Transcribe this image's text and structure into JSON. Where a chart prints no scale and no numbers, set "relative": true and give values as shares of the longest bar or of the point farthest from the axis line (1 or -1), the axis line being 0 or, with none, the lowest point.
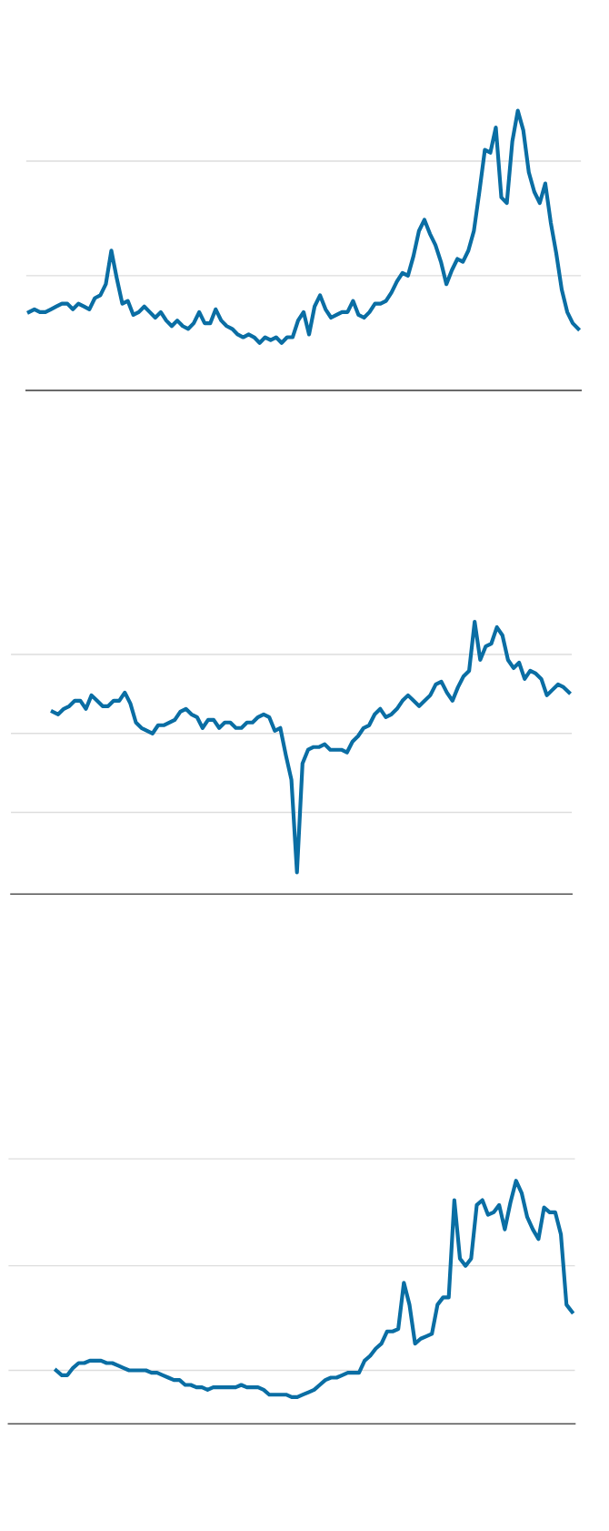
{
  "chart_data": [
    {
      "type": "line",
      "relative": true,
      "ref_lines": [
        {
          "axis": "y",
          "value": 0.41,
          "color": "#dddddd"
        },
        {
          "axis": "y",
          "value": 0.82,
          "color": "#dddddd"
        }
      ],
      "categories": [
        null,
        null,
        null,
        null,
        null,
        null,
        null,
        null,
        null,
        null,
        null,
        null,
        null,
        null,
        null,
        null,
        null,
        null,
        null,
        null,
        null,
        null,
        null,
        null,
        null,
        null,
        null,
        null,
        null,
        null,
        null,
        null,
        null,
        null,
        null,
        null,
        null,
        null,
        null,
        null,
        null,
        null,
        null,
        null,
        null,
        null,
        null,
        null,
        null,
        null,
        null,
        null,
        null,
        null,
        null,
        null,
        null,
        null,
        null,
        null,
        null,
        null,
        null,
        null,
        null,
        null,
        null,
        null,
        null,
        null,
        null,
        null,
        null,
        null,
        null,
        null,
        null,
        null,
        null,
        null,
        null,
        null,
        null,
        null,
        null,
        null,
        null,
        null,
        null,
        null,
        null,
        null,
        null,
        null,
        null,
        null,
        null,
        null,
        null,
        null,
        null
      ],
      "series": [
        {
          "color": "#0a6ea4",
          "values": [
            0.28,
            0.29,
            0.28,
            0.28,
            0.29,
            0.3,
            0.31,
            0.31,
            0.29,
            0.31,
            0.3,
            0.29,
            0.33,
            0.34,
            0.38,
            0.5,
            0.4,
            0.31,
            0.32,
            0.27,
            0.28,
            0.3,
            0.28,
            0.26,
            0.28,
            0.25,
            0.23,
            0.25,
            0.23,
            0.22,
            0.24,
            0.28,
            0.24,
            0.24,
            0.29,
            0.25,
            0.23,
            0.22,
            0.2,
            0.19,
            0.2,
            0.19,
            0.17,
            0.19,
            0.18,
            0.19,
            0.17,
            0.19,
            0.19,
            0.25,
            0.28,
            0.2,
            0.3,
            0.34,
            0.29,
            0.26,
            0.27,
            0.28,
            0.28,
            0.32,
            0.27,
            0.26,
            0.28,
            0.31,
            0.31,
            0.32,
            0.35,
            0.39,
            0.42,
            0.41,
            0.48,
            0.57,
            0.61,
            0.56,
            0.52,
            0.46,
            0.38,
            0.43,
            0.47,
            0.46,
            0.5,
            0.57,
            0.71,
            0.86,
            0.85,
            0.94,
            0.69,
            0.67,
            0.89,
            1,
            0.93,
            0.78,
            0.71,
            0.67,
            0.74,
            0.6,
            0.49,
            0.36,
            0.28,
            0.24,
            0.22
          ]
        }
      ]
    },
    {
      "type": "line",
      "relative": true,
      "ref_lines": [
        {
          "axis": "y",
          "value": 0.3,
          "color": "#dddddd"
        },
        {
          "axis": "y",
          "value": 0.59,
          "color": "#dddddd"
        },
        {
          "axis": "y",
          "value": 0.88,
          "color": "#dddddd"
        }
      ],
      "categories": [
        null,
        null,
        null,
        null,
        null,
        null,
        null,
        null,
        null,
        null,
        null,
        null,
        null,
        null,
        null,
        null,
        null,
        null,
        null,
        null,
        null,
        null,
        null,
        null,
        null,
        null,
        null,
        null,
        null,
        null,
        null,
        null,
        null,
        null,
        null,
        null,
        null,
        null,
        null,
        null,
        null,
        null,
        null,
        null,
        null,
        null,
        null,
        null,
        null,
        null,
        null,
        null,
        null,
        null,
        null,
        null,
        null,
        null,
        null,
        null,
        null,
        null,
        null,
        null,
        null,
        null,
        null,
        null,
        null,
        null,
        null,
        null,
        null,
        null,
        null,
        null,
        null,
        null,
        null,
        null,
        null,
        null,
        null,
        null,
        null,
        null,
        null,
        null,
        null,
        null,
        null,
        null,
        null,
        null,
        null,
        null,
        null,
        null,
        null,
        null,
        null
      ],
      "series": [
        {
          "color": "#0a6ea4",
          "values": [
            null,
            null,
            null,
            null,
            null,
            null,
            null,
            0.67,
            0.66,
            0.68,
            0.69,
            0.71,
            0.71,
            0.68,
            0.73,
            0.71,
            0.69,
            0.69,
            0.71,
            0.71,
            0.74,
            0.7,
            0.63,
            0.61,
            0.6,
            0.59,
            0.62,
            0.62,
            0.63,
            0.64,
            0.67,
            0.68,
            0.66,
            0.65,
            0.61,
            0.64,
            0.64,
            0.61,
            0.63,
            0.63,
            0.61,
            0.61,
            0.63,
            0.63,
            0.65,
            0.66,
            0.65,
            0.6,
            0.61,
            0.51,
            0.42,
            0.08,
            0.48,
            0.53,
            0.54,
            0.54,
            0.55,
            0.53,
            0.53,
            0.53,
            0.52,
            0.56,
            0.58,
            0.61,
            0.62,
            0.66,
            0.68,
            0.65,
            0.66,
            0.68,
            0.71,
            0.73,
            0.71,
            0.69,
            0.71,
            0.73,
            0.77,
            0.78,
            0.74,
            0.71,
            0.76,
            0.8,
            0.82,
            1,
            0.86,
            0.91,
            0.92,
            0.98,
            0.95,
            0.86,
            0.83,
            0.85,
            0.79,
            0.82,
            0.81,
            0.79,
            0.73,
            0.75,
            0.77,
            0.76,
            0.74
          ]
        }
      ]
    },
    {
      "type": "line",
      "relative": true,
      "ref_lines": [
        {
          "axis": "y",
          "value": 0.22,
          "color": "#dddddd"
        },
        {
          "axis": "y",
          "value": 0.65,
          "color": "#dddddd"
        },
        {
          "axis": "y",
          "value": 1.09,
          "color": "#dddddd"
        }
      ],
      "categories": [
        null,
        null,
        null,
        null,
        null,
        null,
        null,
        null,
        null,
        null,
        null,
        null,
        null,
        null,
        null,
        null,
        null,
        null,
        null,
        null,
        null,
        null,
        null,
        null,
        null,
        null,
        null,
        null,
        null,
        null,
        null,
        null,
        null,
        null,
        null,
        null,
        null,
        null,
        null,
        null,
        null,
        null,
        null,
        null,
        null,
        null,
        null,
        null,
        null,
        null,
        null,
        null,
        null,
        null,
        null,
        null,
        null,
        null,
        null,
        null,
        null,
        null,
        null,
        null,
        null,
        null,
        null,
        null,
        null,
        null,
        null,
        null,
        null,
        null,
        null,
        null,
        null,
        null,
        null,
        null,
        null,
        null,
        null,
        null,
        null,
        null,
        null,
        null,
        null,
        null,
        null,
        null,
        null,
        null,
        null,
        null,
        null,
        null,
        null,
        null,
        null
      ],
      "series": [
        {
          "color": "#0a6ea4",
          "values": [
            null,
            null,
            null,
            null,
            null,
            null,
            null,
            null,
            0.22,
            0.2,
            0.2,
            0.23,
            0.25,
            0.25,
            0.26,
            0.26,
            0.26,
            0.25,
            0.25,
            0.24,
            0.23,
            0.22,
            0.22,
            0.22,
            0.22,
            0.21,
            0.21,
            0.2,
            0.19,
            0.18,
            0.18,
            0.16,
            0.16,
            0.15,
            0.15,
            0.14,
            0.15,
            0.15,
            0.15,
            0.15,
            0.15,
            0.16,
            0.15,
            0.15,
            0.15,
            0.14,
            0.12,
            0.12,
            0.12,
            0.12,
            0.11,
            0.11,
            0.12,
            0.13,
            0.14,
            0.16,
            0.18,
            0.19,
            0.19,
            0.2,
            0.21,
            0.21,
            0.21,
            0.26,
            0.28,
            0.31,
            0.33,
            0.38,
            0.38,
            0.39,
            0.58,
            0.49,
            0.33,
            0.35,
            0.36,
            0.37,
            0.49,
            0.52,
            0.52,
            0.92,
            0.68,
            0.65,
            0.68,
            0.9,
            0.92,
            0.86,
            0.87,
            0.9,
            0.8,
            0.91,
            1,
            0.95,
            0.85,
            0.8,
            0.76,
            0.89,
            0.87,
            0.87,
            0.78,
            0.49,
            0.46
          ]
        }
      ]
    }
  ]
}
